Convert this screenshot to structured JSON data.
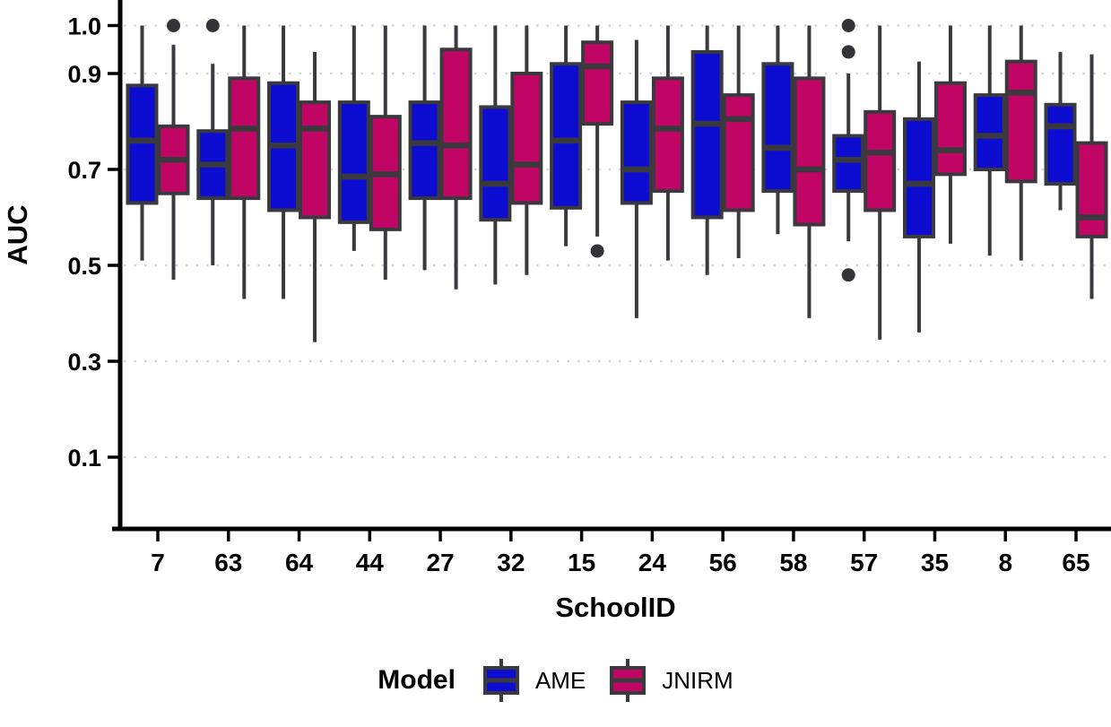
{
  "chart_data": {
    "type": "boxplot",
    "orientation": "vertical",
    "title": "",
    "xlabel": "SchoolID",
    "ylabel": "AUC",
    "categories": [
      "7",
      "63",
      "64",
      "44",
      "27",
      "32",
      "15",
      "24",
      "56",
      "58",
      "57",
      "35",
      "8",
      "65"
    ],
    "y_ticks": [
      1.0,
      0.9,
      0.7,
      0.5,
      0.3,
      0.1
    ],
    "y_tick_labels": [
      "1.0",
      "0.9",
      "0.7",
      "0.5",
      "0.3",
      "0.1"
    ],
    "ylim": [
      -0.05,
      1.05
    ],
    "grid": "horizontal-dotted-at-ticks",
    "legend": {
      "title": "Model",
      "position": "bottom"
    },
    "colors": {
      "ame_fill": "#0D0DD1",
      "jnirm_fill": "#C00565",
      "box_border": "#3A3A3E",
      "whisker": "#3A3A3E",
      "outlier": "#333338",
      "gridline": "#D5D5D5",
      "axis": "#000000",
      "text": "#000000"
    },
    "series": [
      {
        "name": "AME",
        "color": "#0D0DD1",
        "boxes": [
          {
            "category": "7",
            "whisker_low": 0.51,
            "q1": 0.63,
            "median": 0.76,
            "q3": 0.875,
            "whisker_high": 1.0,
            "outliers": []
          },
          {
            "category": "63",
            "whisker_low": 0.5,
            "q1": 0.64,
            "median": 0.71,
            "q3": 0.78,
            "whisker_high": 0.92,
            "outliers": [
              1.0
            ]
          },
          {
            "category": "64",
            "whisker_low": 0.43,
            "q1": 0.615,
            "median": 0.75,
            "q3": 0.88,
            "whisker_high": 1.0,
            "outliers": []
          },
          {
            "category": "44",
            "whisker_low": 0.53,
            "q1": 0.59,
            "median": 0.685,
            "q3": 0.84,
            "whisker_high": 1.0,
            "outliers": []
          },
          {
            "category": "27",
            "whisker_low": 0.49,
            "q1": 0.64,
            "median": 0.755,
            "q3": 0.84,
            "whisker_high": 1.0,
            "outliers": []
          },
          {
            "category": "32",
            "whisker_low": 0.46,
            "q1": 0.595,
            "median": 0.67,
            "q3": 0.83,
            "whisker_high": 1.0,
            "outliers": []
          },
          {
            "category": "15",
            "whisker_low": 0.54,
            "q1": 0.62,
            "median": 0.76,
            "q3": 0.92,
            "whisker_high": 1.0,
            "outliers": []
          },
          {
            "category": "24",
            "whisker_low": 0.39,
            "q1": 0.63,
            "median": 0.7,
            "q3": 0.84,
            "whisker_high": 0.97,
            "outliers": []
          },
          {
            "category": "56",
            "whisker_low": 0.48,
            "q1": 0.6,
            "median": 0.795,
            "q3": 0.945,
            "whisker_high": 1.0,
            "outliers": []
          },
          {
            "category": "58",
            "whisker_low": 0.565,
            "q1": 0.655,
            "median": 0.745,
            "q3": 0.92,
            "whisker_high": 1.0,
            "outliers": []
          },
          {
            "category": "57",
            "whisker_low": 0.55,
            "q1": 0.655,
            "median": 0.72,
            "q3": 0.77,
            "whisker_high": 0.9,
            "outliers": [
              1.0,
              0.945,
              0.48
            ]
          },
          {
            "category": "35",
            "whisker_low": 0.36,
            "q1": 0.56,
            "median": 0.67,
            "q3": 0.805,
            "whisker_high": 0.925,
            "outliers": []
          },
          {
            "category": "8",
            "whisker_low": 0.52,
            "q1": 0.7,
            "median": 0.77,
            "q3": 0.855,
            "whisker_high": 1.0,
            "outliers": []
          },
          {
            "category": "65",
            "whisker_low": 0.615,
            "q1": 0.67,
            "median": 0.79,
            "q3": 0.835,
            "whisker_high": 0.945,
            "outliers": []
          }
        ]
      },
      {
        "name": "JNIRM",
        "color": "#C00565",
        "boxes": [
          {
            "category": "7",
            "whisker_low": 0.47,
            "q1": 0.65,
            "median": 0.72,
            "q3": 0.79,
            "whisker_high": 0.96,
            "outliers": [
              1.0
            ]
          },
          {
            "category": "63",
            "whisker_low": 0.43,
            "q1": 0.64,
            "median": 0.785,
            "q3": 0.89,
            "whisker_high": 1.0,
            "outliers": []
          },
          {
            "category": "64",
            "whisker_low": 0.34,
            "q1": 0.6,
            "median": 0.785,
            "q3": 0.84,
            "whisker_high": 0.945,
            "outliers": []
          },
          {
            "category": "44",
            "whisker_low": 0.47,
            "q1": 0.575,
            "median": 0.69,
            "q3": 0.81,
            "whisker_high": 1.0,
            "outliers": []
          },
          {
            "category": "27",
            "whisker_low": 0.45,
            "q1": 0.64,
            "median": 0.75,
            "q3": 0.95,
            "whisker_high": 1.0,
            "outliers": []
          },
          {
            "category": "32",
            "whisker_low": 0.48,
            "q1": 0.63,
            "median": 0.71,
            "q3": 0.9,
            "whisker_high": 1.0,
            "outliers": []
          },
          {
            "category": "15",
            "whisker_low": 0.56,
            "q1": 0.795,
            "median": 0.915,
            "q3": 0.965,
            "whisker_high": 1.0,
            "outliers": [
              0.53
            ]
          },
          {
            "category": "24",
            "whisker_low": 0.51,
            "q1": 0.655,
            "median": 0.785,
            "q3": 0.89,
            "whisker_high": 1.0,
            "outliers": []
          },
          {
            "category": "56",
            "whisker_low": 0.515,
            "q1": 0.615,
            "median": 0.805,
            "q3": 0.855,
            "whisker_high": 1.0,
            "outliers": []
          },
          {
            "category": "58",
            "whisker_low": 0.39,
            "q1": 0.585,
            "median": 0.7,
            "q3": 0.89,
            "whisker_high": 1.0,
            "outliers": []
          },
          {
            "category": "57",
            "whisker_low": 0.345,
            "q1": 0.615,
            "median": 0.735,
            "q3": 0.82,
            "whisker_high": 1.0,
            "outliers": []
          },
          {
            "category": "35",
            "whisker_low": 0.545,
            "q1": 0.69,
            "median": 0.74,
            "q3": 0.88,
            "whisker_high": 1.0,
            "outliers": []
          },
          {
            "category": "8",
            "whisker_low": 0.51,
            "q1": 0.675,
            "median": 0.86,
            "q3": 0.925,
            "whisker_high": 1.0,
            "outliers": []
          },
          {
            "category": "65",
            "whisker_low": 0.43,
            "q1": 0.56,
            "median": 0.6,
            "q3": 0.755,
            "whisker_high": 0.94,
            "outliers": []
          }
        ]
      }
    ]
  }
}
